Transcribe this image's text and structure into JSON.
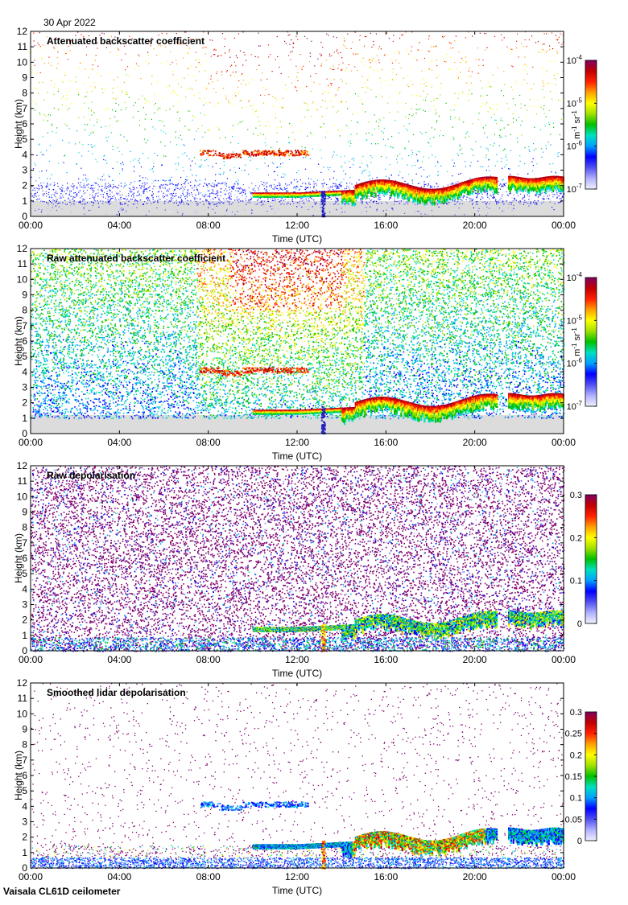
{
  "date": "30 Apr 2022",
  "instrument": "Vaisala CL61D ceilometer",
  "colors": {
    "rainbow": [
      "#f0f0ff",
      "#b0b0ff",
      "#5050f0",
      "#0000ff",
      "#00a0ff",
      "#00e0c0",
      "#00c000",
      "#a0e000",
      "#ffff00",
      "#ffa000",
      "#ff2000",
      "#c00000",
      "#800060"
    ],
    "no_signal": "#dcdcdc",
    "depol_noise": "#800070"
  },
  "chart_data": [
    {
      "type": "heatmap",
      "title": "Attenuated backscatter coefficient",
      "xlabel": "Time (UTC)",
      "ylabel": "Height (km)",
      "x_ticks": [
        "00:00",
        "04:00",
        "08:00",
        "12:00",
        "16:00",
        "20:00",
        "00:00"
      ],
      "y_ticks": [
        "0",
        "1",
        "2",
        "3",
        "4",
        "5",
        "6",
        "7",
        "8",
        "9",
        "10",
        "11",
        "12"
      ],
      "xlim_hours": [
        0,
        24
      ],
      "ylim_km": [
        0,
        12
      ],
      "colorbar": {
        "scale": "log",
        "range": [
          1e-07,
          0.0001
        ],
        "ticks": [
          {
            "base": "10",
            "exp": "-7"
          },
          {
            "base": "10",
            "exp": "-6"
          },
          {
            "base": "10",
            "exp": "-5"
          },
          {
            "base": "10",
            "exp": "-4"
          }
        ],
        "unit_parts": [
          {
            "t": "m",
            "s": ""
          },
          {
            "t": "-1",
            "s": "sup"
          },
          {
            "t": " sr",
            "s": ""
          },
          {
            "t": "-1",
            "s": "sup"
          }
        ]
      },
      "features": [
        {
          "name": "elevated aerosol layer",
          "time_h": [
            7.6,
            12.5
          ],
          "height_km": [
            4.0,
            4.5
          ]
        },
        {
          "name": "cloud base",
          "time_h": [
            10.0,
            24.0
          ],
          "height_km": [
            1.6,
            3.0
          ]
        },
        {
          "name": "boundary layer",
          "time_h": [
            0,
            24
          ],
          "height_km": [
            0,
            1.8
          ]
        }
      ]
    },
    {
      "type": "heatmap",
      "title": "Raw attenuated backscatter coefficient",
      "xlabel": "Time (UTC)",
      "ylabel": "Height (km)",
      "x_ticks": [
        "00:00",
        "04:00",
        "08:00",
        "12:00",
        "16:00",
        "20:00",
        "00:00"
      ],
      "y_ticks": [
        "0",
        "1",
        "2",
        "3",
        "4",
        "5",
        "6",
        "7",
        "8",
        "9",
        "10",
        "11",
        "12"
      ],
      "xlim_hours": [
        0,
        24
      ],
      "ylim_km": [
        0,
        12
      ],
      "colorbar": {
        "scale": "log",
        "range": [
          1e-07,
          0.0001
        ],
        "ticks": [
          {
            "base": "10",
            "exp": "-7"
          },
          {
            "base": "10",
            "exp": "-6"
          },
          {
            "base": "10",
            "exp": "-5"
          },
          {
            "base": "10",
            "exp": "-4"
          }
        ],
        "unit_parts": [
          {
            "t": "m",
            "s": ""
          },
          {
            "t": "-1",
            "s": "sup"
          },
          {
            "t": " sr",
            "s": ""
          },
          {
            "t": "-1",
            "s": "sup"
          }
        ]
      }
    },
    {
      "type": "heatmap",
      "title": "Raw depolarisation",
      "xlabel": "Time (UTC)",
      "ylabel": "Height (km)",
      "x_ticks": [
        "00:00",
        "04:00",
        "08:00",
        "12:00",
        "16:00",
        "20:00",
        "00:00"
      ],
      "y_ticks": [
        "0",
        "1",
        "2",
        "3",
        "4",
        "5",
        "6",
        "7",
        "8",
        "9",
        "10",
        "11",
        "12"
      ],
      "xlim_hours": [
        0,
        24
      ],
      "ylim_km": [
        0,
        12
      ],
      "colorbar": {
        "scale": "linear",
        "range": [
          0,
          0.3
        ],
        "ticks": [
          {
            "base": "0"
          },
          {
            "base": "0.1"
          },
          {
            "base": "0.2"
          },
          {
            "base": "0.3"
          }
        ]
      }
    },
    {
      "type": "heatmap",
      "title": "Smoothed lidar depolarisation",
      "xlabel": "Time (UTC)",
      "ylabel": "Height (km)",
      "x_ticks": [
        "00:00",
        "04:00",
        "08:00",
        "12:00",
        "16:00",
        "20:00",
        "00:00"
      ],
      "y_ticks": [
        "0",
        "1",
        "2",
        "3",
        "4",
        "5",
        "6",
        "7",
        "8",
        "9",
        "10",
        "11",
        "12"
      ],
      "xlim_hours": [
        0,
        24
      ],
      "ylim_km": [
        0,
        12
      ],
      "colorbar": {
        "scale": "linear",
        "range": [
          0,
          0.3
        ],
        "ticks": [
          {
            "base": "0"
          },
          {
            "base": "0.05"
          },
          {
            "base": "0.1"
          },
          {
            "base": "0.15"
          },
          {
            "base": "0.2"
          },
          {
            "base": "0.25"
          },
          {
            "base": "0.3"
          }
        ]
      }
    }
  ]
}
